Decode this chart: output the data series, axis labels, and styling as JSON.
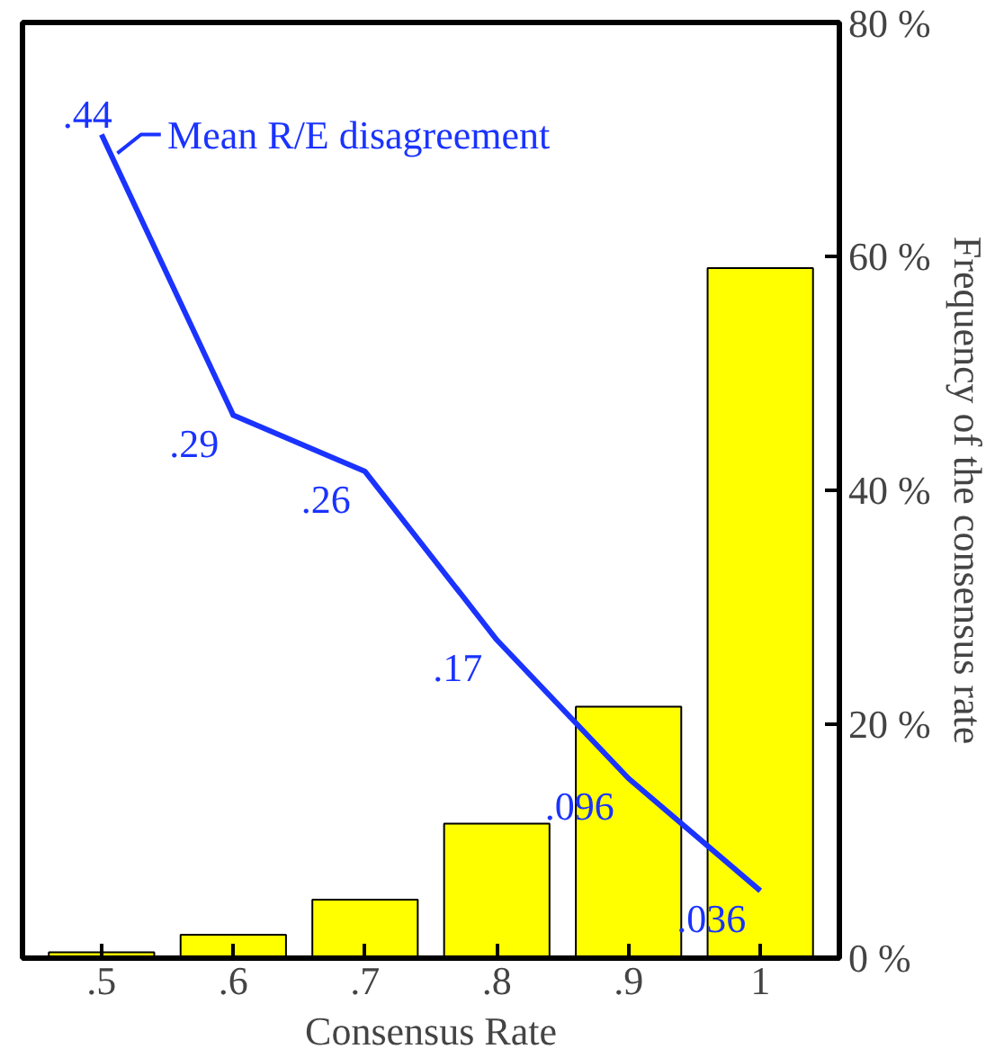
{
  "chart_data": {
    "type": "bar",
    "xlabel": "Consensus Rate",
    "ylabel": "Frequency of the consensus rate",
    "categories": [
      ".5",
      ".6",
      ".7",
      ".8",
      ".9",
      "1"
    ],
    "series": [
      {
        "color": "#ffff00",
        "values": [
          0.5,
          2,
          5,
          11.5,
          21.5,
          59
        ]
      },
      {
        "type": "line",
        "name": "Mean R/E disagreement",
        "color": "#1a33ff",
        "axis": "y2",
        "values": [
          0.44,
          0.29,
          0.26,
          0.17,
          0.096,
          0.036
        ],
        "value_labels": [
          ".44",
          ".29",
          ".26",
          ".17",
          ".096",
          ".036"
        ]
      }
    ],
    "ylim": [
      0,
      80
    ],
    "yticks": [
      {
        "value": 0,
        "label": "0 %"
      },
      {
        "value": 20,
        "label": "20 %"
      },
      {
        "value": 40,
        "label": "40 %"
      },
      {
        "value": 60,
        "label": "60 %"
      },
      {
        "value": 80,
        "label": "80 %"
      }
    ],
    "grid": false,
    "legend": "top left"
  }
}
